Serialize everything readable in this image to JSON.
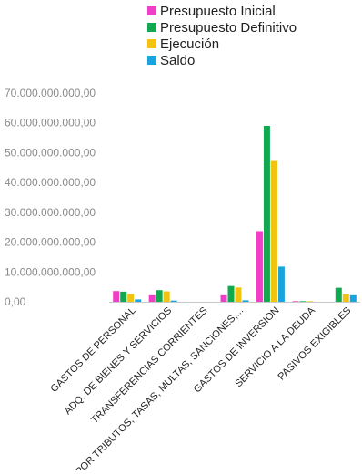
{
  "chart_data": {
    "type": "bar",
    "title": "",
    "xlabel": "",
    "ylabel": "",
    "categories": [
      "GASTOS DE PERSONAL",
      "ADQ. DE BIENES Y SERVICIOS",
      "TRANSFERENCIAS CORRIENTES",
      "POR TRIBUTOS, TASAS, MULTAS, SANCIONES,...",
      "GASTOS DE INVERSION",
      "SERVICIO A LA DEUDA",
      "PASIVOS EXIGIBLES"
    ],
    "series": [
      {
        "name": "Presupuesto Inicial",
        "color": "#ee3fc6",
        "values": [
          3600000000,
          2200000000,
          0,
          2200000000,
          23700000000,
          200000000,
          0
        ]
      },
      {
        "name": "Presupuesto Definitivo",
        "color": "#12a84f",
        "values": [
          3400000000,
          3900000000,
          0,
          5300000000,
          59000000000,
          200000000,
          4700000000
        ]
      },
      {
        "name": "Ejecución",
        "color": "#f2c40f",
        "values": [
          2600000000,
          3500000000,
          0,
          4800000000,
          47200000000,
          200000000,
          2500000000
        ]
      },
      {
        "name": "Saldo",
        "color": "#1aa3dc",
        "values": [
          800000000,
          400000000,
          0,
          500000000,
          11800000000,
          0,
          2200000000
        ]
      }
    ],
    "yticks": [
      "0,00",
      "10.000.000.000,00",
      "20.000.000.000,00",
      "30.000.000.000,00",
      "40.000.000.000,00",
      "50.000.000.000,00",
      "60.000.000.000,00",
      "70.000.000.000,00"
    ],
    "ylim": [
      0,
      70000000000
    ],
    "grid": false,
    "legend_position": "top"
  }
}
